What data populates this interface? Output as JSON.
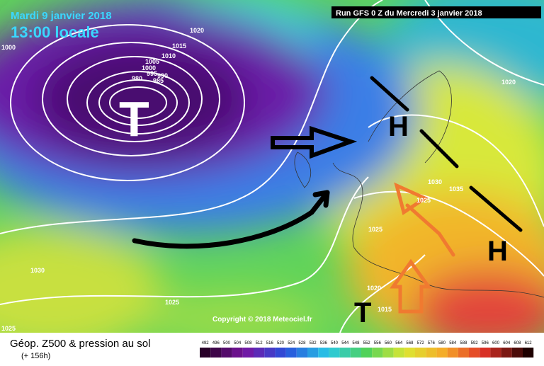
{
  "header": {
    "date": "Mardi 9 janvier 2018",
    "time": "13:00 locale",
    "run": "Run GFS 0 Z du Mercredi 3 janvier 2018"
  },
  "map": {
    "pressure_labels": [
      "1020",
      "1015",
      "1010",
      "1005",
      "1000",
      "995",
      "990",
      "985",
      "980",
      "1000",
      "1020",
      "1030",
      "1035",
      "1025",
      "1025",
      "1020",
      "1015",
      "1030",
      "1025",
      "1025"
    ],
    "centers": [
      "T",
      "H",
      "H",
      "T"
    ],
    "copyright": "Copyright © 2018 Meteociel.fr"
  },
  "footer": {
    "title": "Géop. Z500 & pression au sol",
    "lead": "(+ 156h)"
  },
  "scale": {
    "values": [
      492,
      496,
      500,
      504,
      508,
      512,
      516,
      520,
      524,
      528,
      532,
      536,
      540,
      544,
      548,
      552,
      556,
      560,
      564,
      568,
      572,
      576,
      580,
      584,
      588,
      592,
      596,
      600,
      604,
      608,
      612
    ]
  }
}
